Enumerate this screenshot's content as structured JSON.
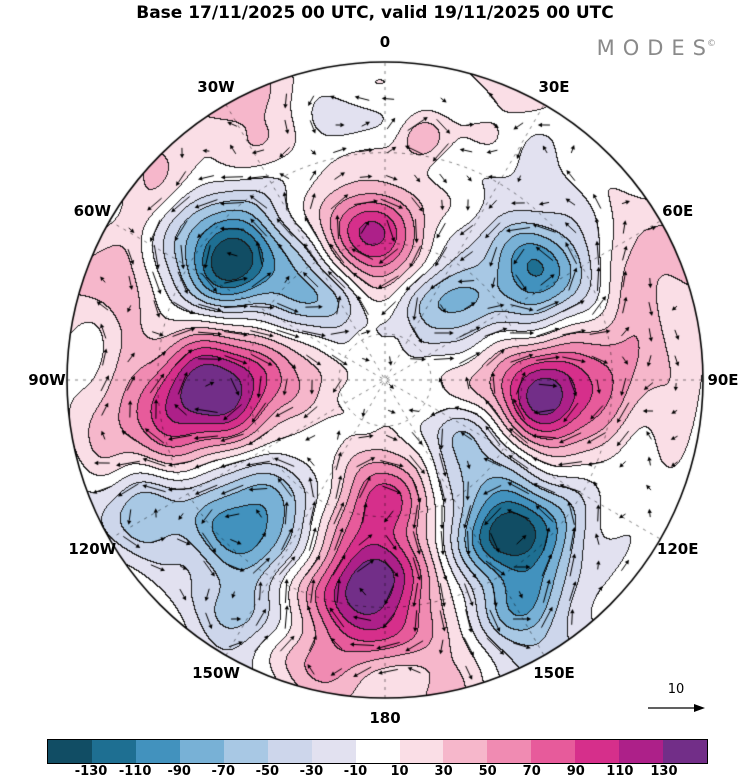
{
  "logo": {
    "text": "MODES",
    "sup": "©"
  },
  "chart_data": {
    "type": "heatmap",
    "subtype": "filled_contour_polar_map",
    "title": "Base 17/11/2025 00 UTC, valid 19/11/2025 00 UTC",
    "projection": "north_polar_stereographic",
    "longitude_labels": [
      "0",
      "30E",
      "60E",
      "90E",
      "120E",
      "150E",
      "180",
      "150W",
      "120W",
      "90W",
      "60W",
      "30W"
    ],
    "levels": [
      -130,
      -110,
      -90,
      -70,
      -50,
      -30,
      -10,
      10,
      30,
      50,
      70,
      90,
      110,
      130
    ],
    "contour_interval": 20,
    "colorbar_colors": [
      "#114d64",
      "#1e6f92",
      "#4292be",
      "#78b1d6",
      "#a8c8e4",
      "#cdd6eb",
      "#e2e1f0",
      "#ffffff",
      "#fadee6",
      "#f6b7cb",
      "#f08bb2",
      "#e75b9b",
      "#d62f8b",
      "#ad2089",
      "#722e88"
    ],
    "overlays": [
      "contour lines",
      "wind vector arrows",
      "dashed graticule"
    ],
    "vector_reference": {
      "label": "10"
    },
    "noise_amplitude": 8,
    "anomalies": [
      {
        "lon": -6,
        "r": 0.44,
        "peak": 122,
        "sigma": 0.115
      },
      {
        "lon": 9,
        "r": 0.77,
        "peak": 50,
        "sigma": 0.05
      },
      {
        "lon": 25,
        "r": 0.97,
        "peak": 24,
        "sigma": 0.09
      },
      {
        "lon": 33,
        "r": 0.86,
        "peak": -20,
        "sigma": 0.07
      },
      {
        "lon": 55,
        "r": 0.59,
        "peak": -108,
        "sigma": 0.13
      },
      {
        "lon": 38,
        "r": 0.3,
        "peak": -72,
        "sigma": 0.1
      },
      {
        "lon": 65,
        "r": 0.95,
        "peak": 42,
        "sigma": 0.13
      },
      {
        "lon": 97,
        "r": 0.49,
        "peak": 135,
        "sigma": 0.12
      },
      {
        "lon": 86,
        "r": 0.73,
        "peak": 52,
        "sigma": 0.15
      },
      {
        "lon": 100,
        "r": 0.24,
        "peak": 30,
        "sigma": 0.09
      },
      {
        "lon": 140,
        "r": 0.63,
        "peak": -148,
        "sigma": 0.13
      },
      {
        "lon": 122,
        "r": 0.32,
        "peak": -72,
        "sigma": 0.1
      },
      {
        "lon": 150,
        "r": 0.88,
        "peak": -70,
        "sigma": 0.1
      },
      {
        "lon": 184,
        "r": 0.66,
        "peak": 152,
        "sigma": 0.14
      },
      {
        "lon": 180,
        "r": 0.36,
        "peak": 85,
        "sigma": 0.1
      },
      {
        "lon": 168,
        "r": 0.97,
        "peak": 40,
        "sigma": 0.09
      },
      {
        "lon": -168,
        "r": 0.97,
        "peak": 42,
        "sigma": 0.1
      },
      {
        "lon": -136,
        "r": 0.62,
        "peak": -110,
        "sigma": 0.14
      },
      {
        "lon": -118,
        "r": 0.88,
        "peak": -70,
        "sigma": 0.1
      },
      {
        "lon": -148,
        "r": 0.9,
        "peak": -50,
        "sigma": 0.09
      },
      {
        "lon": -93,
        "r": 0.53,
        "peak": 152,
        "sigma": 0.135
      },
      {
        "lon": -102,
        "r": 0.78,
        "peak": 55,
        "sigma": 0.13
      },
      {
        "lon": -85,
        "r": 0.26,
        "peak": 32,
        "sigma": 0.09
      },
      {
        "lon": -52,
        "r": 0.62,
        "peak": -148,
        "sigma": 0.125
      },
      {
        "lon": -36,
        "r": 0.34,
        "peak": -80,
        "sigma": 0.1
      },
      {
        "lon": -70,
        "r": 0.93,
        "peak": 48,
        "sigma": 0.11
      },
      {
        "lon": -48,
        "r": 1.0,
        "peak": 38,
        "sigma": 0.1
      },
      {
        "lon": -27,
        "r": 0.95,
        "peak": 42,
        "sigma": 0.12
      },
      {
        "lon": -13,
        "r": 0.9,
        "peak": -22,
        "sigma": 0.08
      }
    ]
  }
}
